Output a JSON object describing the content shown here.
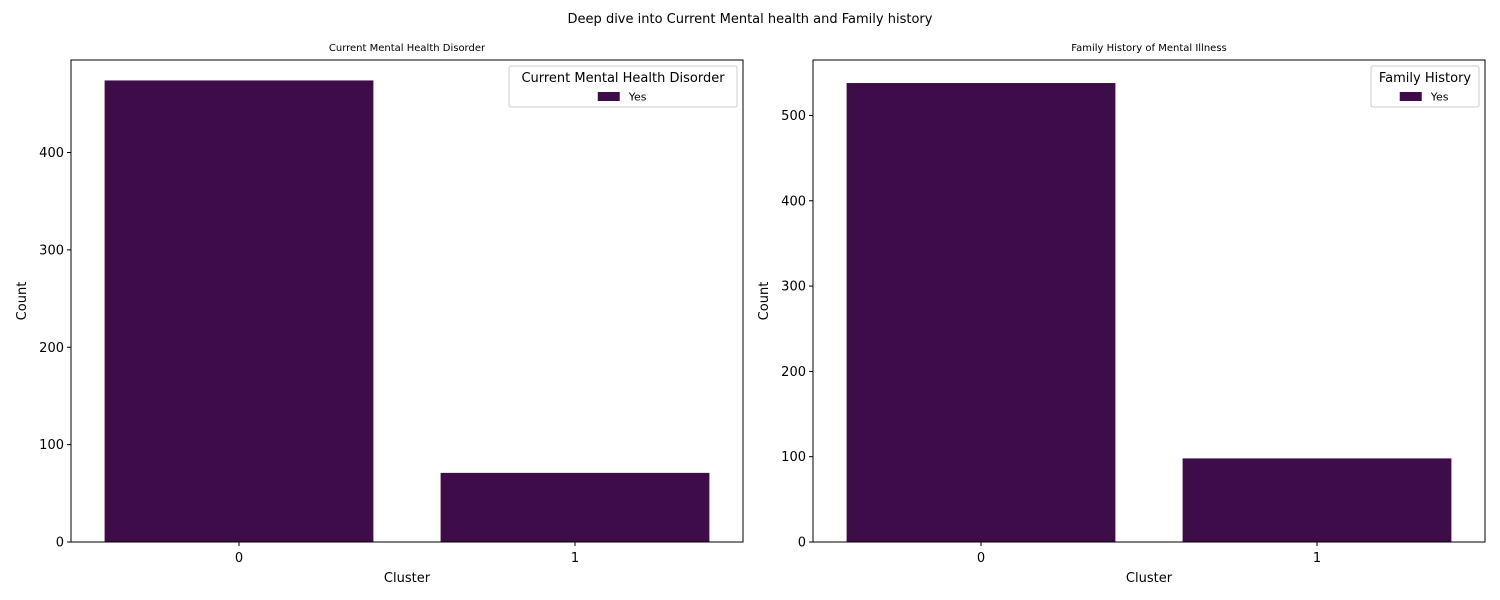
{
  "figure": {
    "suptitle": "Deep dive into Current Mental health and Family history"
  },
  "chart_data": [
    {
      "type": "bar",
      "title": "Current Mental Health Disorder",
      "xlabel": "Cluster",
      "ylabel": "Count",
      "categories": [
        "0",
        "1"
      ],
      "ylim": [
        0,
        495
      ],
      "yticks": [
        0,
        100,
        200,
        300,
        400
      ],
      "grid": false,
      "legend": {
        "title": "Current Mental Health Disorder",
        "placement": "top-right"
      },
      "series": [
        {
          "name": "Yes",
          "color": "#3f0c4a",
          "values": [
            474,
            71
          ]
        }
      ]
    },
    {
      "type": "bar",
      "title": "Family History of Mental Illness",
      "xlabel": "Cluster",
      "ylabel": "Count",
      "categories": [
        "0",
        "1"
      ],
      "ylim": [
        0,
        565
      ],
      "yticks": [
        0,
        100,
        200,
        300,
        400,
        500
      ],
      "grid": false,
      "legend": {
        "title": "Family History",
        "placement": "top-right"
      },
      "series": [
        {
          "name": "Yes",
          "color": "#3f0c4a",
          "values": [
            538,
            98
          ]
        }
      ]
    }
  ]
}
